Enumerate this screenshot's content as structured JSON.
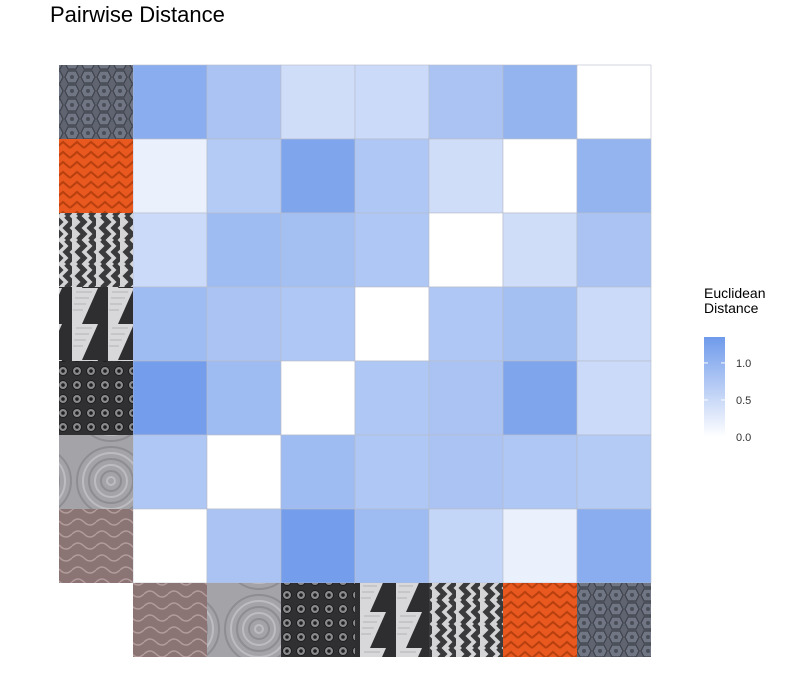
{
  "chart_data": {
    "type": "heatmap",
    "title": "Pairwise Distance",
    "rows_top_to_bottom": [
      "grey-hex-sole",
      "orange-chevron-sole",
      "wavy-black-sole",
      "white-black-sole",
      "black-dots-sole",
      "grey-concentric-sole",
      "brown-wave-sole"
    ],
    "columns_left_to_right": [
      "brown-wave-sole",
      "grey-concentric-sole",
      "black-dots-sole",
      "white-black-sole",
      "wavy-black-sole",
      "orange-chevron-sole",
      "grey-hex-sole"
    ],
    "note": "row and column headers are shoe-sole photograph thumbnails (no text labels)",
    "values": [
      [
        1.1,
        0.8,
        0.45,
        0.5,
        0.8,
        1.0,
        0.0
      ],
      [
        0.2,
        0.7,
        1.2,
        0.75,
        0.45,
        0.0,
        1.0
      ],
      [
        0.5,
        0.9,
        0.85,
        0.75,
        0.0,
        0.45,
        0.8
      ],
      [
        0.9,
        0.8,
        0.75,
        0.0,
        0.75,
        0.85,
        0.5
      ],
      [
        1.3,
        0.9,
        0.0,
        0.75,
        0.8,
        1.2,
        0.5
      ],
      [
        0.75,
        0.0,
        0.9,
        0.75,
        0.8,
        0.75,
        0.7
      ],
      [
        0.0,
        0.8,
        1.3,
        0.9,
        0.55,
        0.2,
        1.1
      ]
    ],
    "legend": {
      "title_lines": [
        "Euclidean",
        "Distance"
      ],
      "ticks": [
        "1.0",
        "0.5",
        "0.0"
      ],
      "tick_values": [
        1.0,
        0.5,
        0.0
      ],
      "min": 0.0,
      "max": 1.35,
      "low_color": "#ffffff",
      "high_color": "#6f9aeb",
      "placement": "right"
    }
  }
}
